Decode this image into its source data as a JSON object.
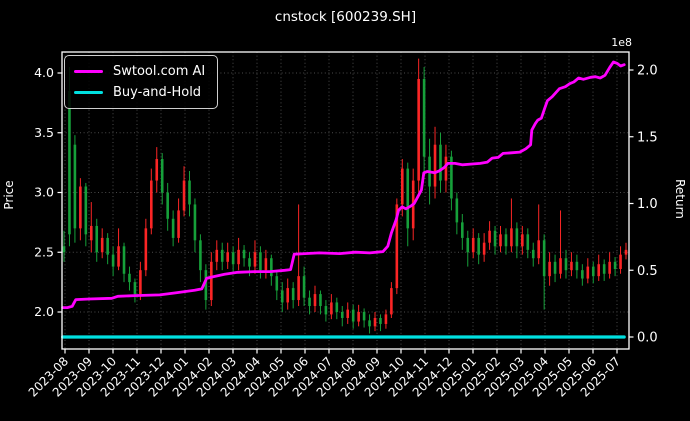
{
  "title": "cnstock [600239.SH]",
  "axes": {
    "left_label": "Price",
    "right_label": "Return",
    "right_offset_label": "1e8",
    "price_tick_labels": [
      "2.0",
      "2.5",
      "3.0",
      "3.5",
      "4.0"
    ],
    "price_tick_values": [
      2.0,
      2.5,
      3.0,
      3.5,
      4.0
    ],
    "return_tick_labels": [
      "0.0",
      "0.5",
      "1.0",
      "1.5",
      "2.0"
    ],
    "return_tick_values": [
      0.0,
      0.5,
      1.0,
      1.5,
      2.0
    ],
    "x_tick_labels": [
      "2023-08",
      "2023-09",
      "2023-10",
      "2023-11",
      "2023-12",
      "2024-01",
      "2024-02",
      "2024-03",
      "2024-04",
      "2024-05",
      "2024-06",
      "2024-07",
      "2024-08",
      "2024-09",
      "2024-10",
      "2024-11",
      "2024-12",
      "2025-01",
      "2025-02",
      "2025-03",
      "2025-04",
      "2025-05",
      "2025-06",
      "2025-07"
    ]
  },
  "legend": {
    "items": [
      {
        "label": "Swtool.com AI",
        "color": "#ff00ff"
      },
      {
        "label": "Buy-and-Hold",
        "color": "#00e0e0"
      }
    ]
  },
  "colors": {
    "background": "#000000",
    "spine": "#ffffff",
    "grid": "#4a4a4a",
    "candle_up": "#fb2525",
    "candle_down": "#16a03a",
    "ai_line": "#ff00ff",
    "hold_line": "#00e0e0",
    "text": "#ffffff"
  },
  "chart_data": {
    "type": "candlestick+line",
    "title": "cnstock [600239.SH]",
    "grid": "dotted",
    "legend_position": "upper-left",
    "price_axis": {
      "label": "Price",
      "ylim": [
        1.69,
        4.18
      ],
      "ticks": [
        2.0,
        2.5,
        3.0,
        3.5,
        4.0
      ]
    },
    "return_axis": {
      "label": "Return",
      "unit_multiplier": "1e8",
      "ylim": [
        -0.09,
        2.14
      ],
      "ticks": [
        0.0,
        0.5,
        1.0,
        1.5,
        2.0
      ]
    },
    "x_axis": {
      "ticks_months": [
        "2023-08",
        "2023-09",
        "2023-10",
        "2023-11",
        "2023-12",
        "2024-01",
        "2024-02",
        "2024-03",
        "2024-04",
        "2024-05",
        "2024-06",
        "2024-07",
        "2024-08",
        "2024-09",
        "2024-10",
        "2024-11",
        "2024-12",
        "2025-01",
        "2025-02",
        "2025-03",
        "2025-04",
        "2025-05",
        "2025-06",
        "2025-07"
      ]
    },
    "candles_note": "approx weekly OHLC read from pixels; up candles red, down candles green (CN convention)",
    "candles_ohlc": [
      [
        2.55,
        2.68,
        2.42,
        2.5
      ],
      [
        3.85,
        4.05,
        2.55,
        2.65
      ],
      [
        3.4,
        3.48,
        2.58,
        2.7
      ],
      [
        2.7,
        3.12,
        2.6,
        3.05
      ],
      [
        3.05,
        3.08,
        2.55,
        2.65
      ],
      [
        2.6,
        2.92,
        2.5,
        2.72
      ],
      [
        2.72,
        2.78,
        2.42,
        2.5
      ],
      [
        2.5,
        2.7,
        2.45,
        2.62
      ],
      [
        2.62,
        2.66,
        2.4,
        2.48
      ],
      [
        2.48,
        2.55,
        2.3,
        2.38
      ],
      [
        2.38,
        2.7,
        2.35,
        2.55
      ],
      [
        2.55,
        2.58,
        2.25,
        2.32
      ],
      [
        2.32,
        2.38,
        2.18,
        2.25
      ],
      [
        2.25,
        2.28,
        2.08,
        2.15
      ],
      [
        2.15,
        2.42,
        2.1,
        2.35
      ],
      [
        2.35,
        2.78,
        2.3,
        2.7
      ],
      [
        2.7,
        3.2,
        2.65,
        3.1
      ],
      [
        3.1,
        3.38,
        3.0,
        3.28
      ],
      [
        3.28,
        3.33,
        2.9,
        3.0
      ],
      [
        3.0,
        3.08,
        2.68,
        2.78
      ],
      [
        2.78,
        2.85,
        2.55,
        2.62
      ],
      [
        2.62,
        2.95,
        2.58,
        2.85
      ],
      [
        2.85,
        3.22,
        2.8,
        3.1
      ],
      [
        3.1,
        3.18,
        2.8,
        2.9
      ],
      [
        2.9,
        2.95,
        2.5,
        2.6
      ],
      [
        2.6,
        2.65,
        2.25,
        2.35
      ],
      [
        2.35,
        2.4,
        2.02,
        2.1
      ],
      [
        2.1,
        2.5,
        2.05,
        2.42
      ],
      [
        2.42,
        2.6,
        2.35,
        2.52
      ],
      [
        2.52,
        2.58,
        2.35,
        2.42
      ],
      [
        2.42,
        2.58,
        2.36,
        2.5
      ],
      [
        2.5,
        2.55,
        2.32,
        2.4
      ],
      [
        2.4,
        2.62,
        2.35,
        2.52
      ],
      [
        2.52,
        2.56,
        2.38,
        2.45
      ],
      [
        2.45,
        2.5,
        2.3,
        2.38
      ],
      [
        2.38,
        2.6,
        2.32,
        2.5
      ],
      [
        2.5,
        2.55,
        2.28,
        2.35
      ],
      [
        2.35,
        2.52,
        2.28,
        2.45
      ],
      [
        2.45,
        2.48,
        2.22,
        2.3
      ],
      [
        2.3,
        2.35,
        2.1,
        2.18
      ],
      [
        2.18,
        2.25,
        2.0,
        2.08
      ],
      [
        2.08,
        2.28,
        2.02,
        2.2
      ],
      [
        2.2,
        2.25,
        2.03,
        2.1
      ],
      [
        2.1,
        2.9,
        2.05,
        2.3
      ],
      [
        2.3,
        2.38,
        2.05,
        2.12
      ],
      [
        2.12,
        2.18,
        1.98,
        2.05
      ],
      [
        2.05,
        2.22,
        2.0,
        2.15
      ],
      [
        2.15,
        2.18,
        1.98,
        2.05
      ],
      [
        2.05,
        2.1,
        1.92,
        1.98
      ],
      [
        1.98,
        2.15,
        1.94,
        2.08
      ],
      [
        2.08,
        2.12,
        1.94,
        2.0
      ],
      [
        2.0,
        2.05,
        1.88,
        1.95
      ],
      [
        1.95,
        2.08,
        1.9,
        2.02
      ],
      [
        2.02,
        2.06,
        1.86,
        1.92
      ],
      [
        1.92,
        2.06,
        1.88,
        2.0
      ],
      [
        2.0,
        2.03,
        1.87,
        1.93
      ],
      [
        1.93,
        1.98,
        1.82,
        1.88
      ],
      [
        1.88,
        2.0,
        1.84,
        1.95
      ],
      [
        1.95,
        1.98,
        1.84,
        1.9
      ],
      [
        1.9,
        2.02,
        1.86,
        1.98
      ],
      [
        1.98,
        2.25,
        1.95,
        2.2
      ],
      [
        2.2,
        2.95,
        2.15,
        2.9
      ],
      [
        2.9,
        3.28,
        2.8,
        3.2
      ],
      [
        3.2,
        3.25,
        2.55,
        2.7
      ],
      [
        2.7,
        3.2,
        2.6,
        3.1
      ],
      [
        3.1,
        4.12,
        3.0,
        3.95
      ],
      [
        3.95,
        4.05,
        3.15,
        3.3
      ],
      [
        3.3,
        3.45,
        2.9,
        3.05
      ],
      [
        3.05,
        3.55,
        2.95,
        3.4
      ],
      [
        3.4,
        3.5,
        3.0,
        3.1
      ],
      [
        3.1,
        3.4,
        3.0,
        3.3
      ],
      [
        3.3,
        3.35,
        2.85,
        2.95
      ],
      [
        2.95,
        3.0,
        2.65,
        2.75
      ],
      [
        2.75,
        2.82,
        2.52,
        2.62
      ],
      [
        2.62,
        2.68,
        2.38,
        2.5
      ],
      [
        2.5,
        2.7,
        2.45,
        2.62
      ],
      [
        2.62,
        2.66,
        2.4,
        2.48
      ],
      [
        2.48,
        2.66,
        2.42,
        2.58
      ],
      [
        2.58,
        2.76,
        2.52,
        2.68
      ],
      [
        2.68,
        2.72,
        2.48,
        2.55
      ],
      [
        2.55,
        2.72,
        2.5,
        2.65
      ],
      [
        2.65,
        2.7,
        2.48,
        2.55
      ],
      [
        2.55,
        2.95,
        2.5,
        2.7
      ],
      [
        2.7,
        2.75,
        2.45,
        2.55
      ],
      [
        2.55,
        2.72,
        2.48,
        2.65
      ],
      [
        2.65,
        2.7,
        2.45,
        2.52
      ],
      [
        2.52,
        2.58,
        2.38,
        2.45
      ],
      [
        2.45,
        2.9,
        2.4,
        2.6
      ],
      [
        2.6,
        2.65,
        2.02,
        2.3
      ],
      [
        2.3,
        2.5,
        2.22,
        2.42
      ],
      [
        2.42,
        2.48,
        2.25,
        2.32
      ],
      [
        2.32,
        2.85,
        2.28,
        2.45
      ],
      [
        2.45,
        2.52,
        2.28,
        2.35
      ],
      [
        2.35,
        2.5,
        2.3,
        2.42
      ],
      [
        2.42,
        2.48,
        2.28,
        2.35
      ],
      [
        2.35,
        2.4,
        2.22,
        2.28
      ],
      [
        2.28,
        2.45,
        2.24,
        2.38
      ],
      [
        2.38,
        2.42,
        2.24,
        2.3
      ],
      [
        2.3,
        2.48,
        2.26,
        2.4
      ],
      [
        2.4,
        2.44,
        2.26,
        2.32
      ],
      [
        2.32,
        2.5,
        2.28,
        2.42
      ],
      [
        2.42,
        2.46,
        2.3,
        2.36
      ],
      [
        2.36,
        2.55,
        2.32,
        2.48
      ],
      [
        2.48,
        2.58,
        2.44,
        2.52
      ]
    ],
    "series": [
      {
        "name": "Swtool.com AI",
        "type": "line",
        "axis": "return",
        "color": "#ff00ff",
        "points_month_value_1e8": [
          [
            -0.1,
            0.22
          ],
          [
            0.1,
            0.22
          ],
          [
            0.3,
            0.23
          ],
          [
            0.45,
            0.28
          ],
          [
            1.0,
            0.285
          ],
          [
            1.95,
            0.29
          ],
          [
            2.2,
            0.305
          ],
          [
            2.9,
            0.31
          ],
          [
            3.95,
            0.315
          ],
          [
            4.6,
            0.33
          ],
          [
            5.4,
            0.35
          ],
          [
            5.7,
            0.36
          ],
          [
            5.9,
            0.44
          ],
          [
            6.15,
            0.45
          ],
          [
            6.65,
            0.47
          ],
          [
            7.2,
            0.485
          ],
          [
            7.9,
            0.49
          ],
          [
            8.55,
            0.49
          ],
          [
            9.15,
            0.5
          ],
          [
            9.4,
            0.505
          ],
          [
            9.55,
            0.62
          ],
          [
            10.0,
            0.625
          ],
          [
            10.6,
            0.63
          ],
          [
            11.45,
            0.625
          ],
          [
            12.1,
            0.635
          ],
          [
            12.7,
            0.63
          ],
          [
            13.25,
            0.64
          ],
          [
            13.45,
            0.68
          ],
          [
            13.6,
            0.78
          ],
          [
            13.8,
            0.88
          ],
          [
            13.9,
            0.95
          ],
          [
            14.05,
            0.975
          ],
          [
            14.2,
            0.96
          ],
          [
            14.4,
            0.98
          ],
          [
            14.55,
            1.0
          ],
          [
            14.7,
            1.05
          ],
          [
            14.85,
            1.1
          ],
          [
            14.95,
            1.23
          ],
          [
            15.1,
            1.24
          ],
          [
            15.4,
            1.23
          ],
          [
            15.6,
            1.245
          ],
          [
            15.8,
            1.27
          ],
          [
            15.95,
            1.3
          ],
          [
            16.25,
            1.3
          ],
          [
            16.55,
            1.29
          ],
          [
            16.9,
            1.295
          ],
          [
            17.3,
            1.3
          ],
          [
            17.6,
            1.31
          ],
          [
            17.8,
            1.34
          ],
          [
            18.05,
            1.345
          ],
          [
            18.25,
            1.375
          ],
          [
            18.6,
            1.38
          ],
          [
            18.95,
            1.385
          ],
          [
            19.2,
            1.41
          ],
          [
            19.4,
            1.44
          ],
          [
            19.45,
            1.55
          ],
          [
            19.6,
            1.6
          ],
          [
            19.7,
            1.625
          ],
          [
            19.85,
            1.64
          ],
          [
            20.0,
            1.72
          ],
          [
            20.1,
            1.77
          ],
          [
            20.3,
            1.8
          ],
          [
            20.45,
            1.83
          ],
          [
            20.6,
            1.86
          ],
          [
            20.85,
            1.875
          ],
          [
            21.05,
            1.9
          ],
          [
            21.2,
            1.91
          ],
          [
            21.4,
            1.94
          ],
          [
            21.6,
            1.93
          ],
          [
            21.9,
            1.945
          ],
          [
            22.1,
            1.95
          ],
          [
            22.3,
            1.94
          ],
          [
            22.5,
            1.96
          ],
          [
            22.7,
            2.02
          ],
          [
            22.85,
            2.06
          ],
          [
            23.0,
            2.05
          ],
          [
            23.15,
            2.03
          ],
          [
            23.3,
            2.04
          ]
        ]
      },
      {
        "name": "Buy-and-Hold",
        "type": "line",
        "axis": "return",
        "color": "#00e0e0",
        "points_month_value_1e8": [
          [
            -0.1,
            0.0
          ],
          [
            23.3,
            0.0
          ]
        ]
      }
    ]
  }
}
